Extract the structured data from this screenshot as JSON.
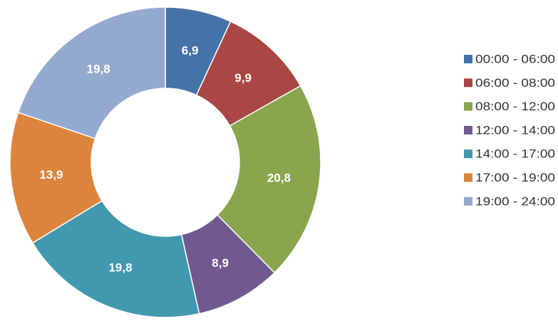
{
  "chart_data": {
    "type": "pie",
    "variant": "donut",
    "title": "",
    "categories": [
      "00:00 - 06:00",
      "06:00 - 08:00",
      "08:00 - 12:00",
      "12:00 - 14:00",
      "14:00 - 17:00",
      "17:00 - 19:00",
      "19:00 - 24:00"
    ],
    "values": [
      6.9,
      9.9,
      20.8,
      8.9,
      19.8,
      13.9,
      19.8
    ],
    "value_labels": [
      "6,9",
      "9,9",
      "20,8",
      "8,9",
      "19,8",
      "13,9",
      "19,8"
    ],
    "colors": [
      "#4572A7",
      "#AA4643",
      "#89A54E",
      "#71588F",
      "#4198AF",
      "#DB843D",
      "#93A9CF"
    ],
    "start_angle_deg": 0,
    "direction": "clockwise",
    "legend": "right",
    "data_labels": "inside"
  }
}
